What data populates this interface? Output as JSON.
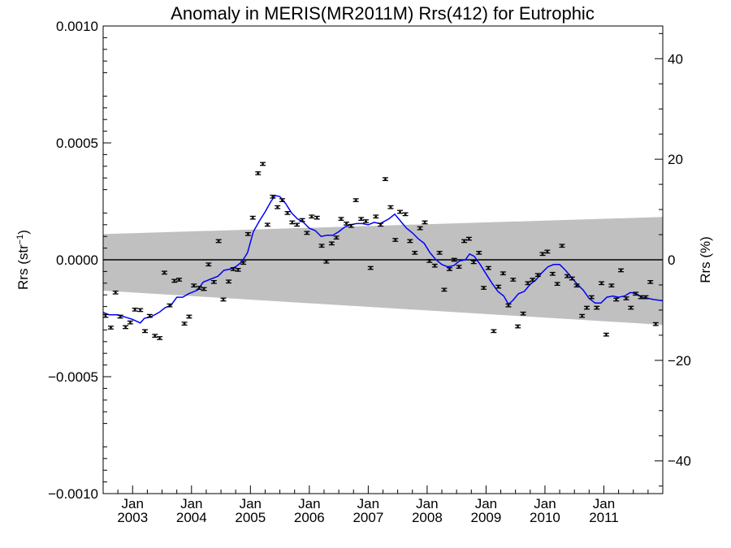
{
  "chart_data": {
    "type": "scatter",
    "title": "Anomaly in MERIS(MR2011M) Rrs(412) for Eutrophic",
    "ylabel_left_main": "Rrs (str",
    "ylabel_left_sup": "−1",
    "ylabel_left_close": ")",
    "ylabel_right": "Rrs (%)",
    "xlim": [
      2002.5,
      2012.0
    ],
    "ylim": [
      -0.001,
      0.001
    ],
    "ylim_right": [
      -46.5,
      46.5
    ],
    "grid": false,
    "y_ticks_left": [
      {
        "value": 0.001,
        "label": "0.0010"
      },
      {
        "value": 0.0005,
        "label": "0.0005"
      },
      {
        "value": 0.0,
        "label": "0.0000"
      },
      {
        "value": -0.0005,
        "label": "−0.0005"
      },
      {
        "value": -0.001,
        "label": "−0.0010"
      }
    ],
    "y_ticks_right": [
      {
        "value": 40,
        "label": "40"
      },
      {
        "value": 20,
        "label": "20"
      },
      {
        "value": 0,
        "label": "0"
      },
      {
        "value": -20,
        "label": "−20"
      },
      {
        "value": -40,
        "label": "−40"
      }
    ],
    "x_ticks": [
      {
        "value": 2003.0,
        "month": "Jan",
        "year": "2003"
      },
      {
        "value": 2004.0,
        "month": "Jan",
        "year": "2004"
      },
      {
        "value": 2005.0,
        "month": "Jan",
        "year": "2005"
      },
      {
        "value": 2006.0,
        "month": "Jan",
        "year": "2006"
      },
      {
        "value": 2007.0,
        "month": "Jan",
        "year": "2007"
      },
      {
        "value": 2008.0,
        "month": "Jan",
        "year": "2008"
      },
      {
        "value": 2009.0,
        "month": "Jan",
        "year": "2009"
      },
      {
        "value": 2010.0,
        "month": "Jan",
        "year": "2010"
      },
      {
        "value": 2011.0,
        "month": "Jan",
        "year": "2011"
      }
    ],
    "band": {
      "color": "#c0c0c0",
      "x": [
        2002.5,
        2012.0
      ],
      "upper": [
        0.00011,
        0.000183
      ],
      "lower": [
        -0.000132,
        -0.000278
      ]
    },
    "zero_line": 0.0,
    "series": [
      {
        "kind": "points_with_errorbars",
        "color": "#000000",
        "error": 6e-06,
        "points": [
          [
            2002.54,
            -0.00024
          ],
          [
            2002.63,
            -0.00029
          ],
          [
            2002.71,
            -0.00014
          ],
          [
            2002.79,
            -0.000243
          ],
          [
            2002.88,
            -0.000288
          ],
          [
            2002.96,
            -0.000268
          ],
          [
            2003.04,
            -0.000213
          ],
          [
            2003.13,
            -0.000215
          ],
          [
            2003.21,
            -0.000305
          ],
          [
            2003.29,
            -0.00024
          ],
          [
            2003.38,
            -0.000325
          ],
          [
            2003.46,
            -0.000335
          ],
          [
            2003.54,
            -5.5e-05
          ],
          [
            2003.63,
            -0.000195
          ],
          [
            2003.71,
            -9e-05
          ],
          [
            2003.79,
            -8.5e-05
          ],
          [
            2003.88,
            -0.000273
          ],
          [
            2003.96,
            -0.000243
          ],
          [
            2004.04,
            -0.00011
          ],
          [
            2004.13,
            -0.00012
          ],
          [
            2004.21,
            -0.000125
          ],
          [
            2004.29,
            -2e-05
          ],
          [
            2004.38,
            -9.5e-05
          ],
          [
            2004.46,
            8e-05
          ],
          [
            2004.54,
            -0.00017
          ],
          [
            2004.63,
            -9.3e-05
          ],
          [
            2004.71,
            -4e-05
          ],
          [
            2004.79,
            -4.3e-05
          ],
          [
            2004.88,
            -1.3e-05
          ],
          [
            2004.96,
            0.00011
          ],
          [
            2005.04,
            0.00018
          ],
          [
            2005.13,
            0.00037
          ],
          [
            2005.21,
            0.00041
          ],
          [
            2005.29,
            0.00015
          ],
          [
            2005.38,
            0.00027
          ],
          [
            2005.46,
            0.000225
          ],
          [
            2005.54,
            0.000255
          ],
          [
            2005.63,
            0.0002
          ],
          [
            2005.71,
            0.00016
          ],
          [
            2005.79,
            0.00015
          ],
          [
            2005.88,
            0.00017
          ],
          [
            2005.96,
            0.000115
          ],
          [
            2006.04,
            0.000185
          ],
          [
            2006.13,
            0.00018
          ],
          [
            2006.21,
            6e-05
          ],
          [
            2006.29,
            -8e-06
          ],
          [
            2006.38,
            7e-05
          ],
          [
            2006.46,
            9.5e-05
          ],
          [
            2006.54,
            0.000175
          ],
          [
            2006.63,
            0.000155
          ],
          [
            2006.71,
            0.000145
          ],
          [
            2006.79,
            0.000255
          ],
          [
            2006.88,
            0.000175
          ],
          [
            2006.96,
            0.000165
          ],
          [
            2007.04,
            -3.5e-05
          ],
          [
            2007.13,
            0.000185
          ],
          [
            2007.21,
            0.00015
          ],
          [
            2007.29,
            0.000345
          ],
          [
            2007.38,
            0.000225
          ],
          [
            2007.46,
            8.5e-05
          ],
          [
            2007.54,
            0.000205
          ],
          [
            2007.63,
            0.000195
          ],
          [
            2007.71,
            8e-05
          ],
          [
            2007.79,
            3e-05
          ],
          [
            2007.88,
            0.000135
          ],
          [
            2007.96,
            0.00016
          ],
          [
            2008.04,
            -5e-06
          ],
          [
            2008.13,
            -2.5e-05
          ],
          [
            2008.21,
            3e-05
          ],
          [
            2008.29,
            -0.000128
          ],
          [
            2008.38,
            -4e-05
          ],
          [
            2008.46,
            0.0
          ],
          [
            2008.54,
            -3e-05
          ],
          [
            2008.63,
            8e-05
          ],
          [
            2008.71,
            9e-05
          ],
          [
            2008.79,
            -1e-05
          ],
          [
            2008.88,
            3e-05
          ],
          [
            2008.96,
            -0.00012
          ],
          [
            2009.04,
            -3.5e-05
          ],
          [
            2009.13,
            -0.000305
          ],
          [
            2009.21,
            -0.000115
          ],
          [
            2009.29,
            -5.8e-05
          ],
          [
            2009.38,
            -0.000195
          ],
          [
            2009.46,
            -8.5e-05
          ],
          [
            2009.54,
            -0.000285
          ],
          [
            2009.63,
            -0.00023
          ],
          [
            2009.71,
            -0.0001
          ],
          [
            2009.79,
            -8.5e-05
          ],
          [
            2009.88,
            -6.5e-05
          ],
          [
            2009.96,
            2.5e-05
          ],
          [
            2010.04,
            3.5e-05
          ],
          [
            2010.13,
            -6e-05
          ],
          [
            2010.21,
            -0.000103
          ],
          [
            2010.29,
            6e-05
          ],
          [
            2010.38,
            -7e-05
          ],
          [
            2010.46,
            -8e-05
          ],
          [
            2010.54,
            -0.00011
          ],
          [
            2010.63,
            -0.00024
          ],
          [
            2010.71,
            -0.000205
          ],
          [
            2010.79,
            -0.00016
          ],
          [
            2010.88,
            -0.000205
          ],
          [
            2010.96,
            -0.0001
          ],
          [
            2011.04,
            -0.00032
          ],
          [
            2011.13,
            -0.00011
          ],
          [
            2011.21,
            -0.00017
          ],
          [
            2011.29,
            -4.5e-05
          ],
          [
            2011.38,
            -0.000165
          ],
          [
            2011.46,
            -0.000205
          ],
          [
            2011.54,
            -0.000145
          ],
          [
            2011.63,
            -0.00016
          ],
          [
            2011.71,
            -0.00016
          ],
          [
            2011.79,
            -9.5e-05
          ],
          [
            2011.88,
            -0.000275
          ]
        ]
      },
      {
        "kind": "line",
        "color": "#0000ff",
        "x": [
          2002.5,
          2002.6,
          2002.75,
          2003.0,
          2003.13,
          2003.2,
          2003.3,
          2003.45,
          2003.55,
          2003.65,
          2003.75,
          2003.85,
          2003.95,
          2004.1,
          2004.2,
          2004.3,
          2004.45,
          2004.55,
          2004.65,
          2004.75,
          2004.85,
          2004.95,
          2005.05,
          2005.15,
          2005.25,
          2005.35,
          2005.42,
          2005.5,
          2005.6,
          2005.7,
          2005.8,
          2005.9,
          2006.0,
          2006.1,
          2006.2,
          2006.3,
          2006.4,
          2006.5,
          2006.6,
          2006.7,
          2006.8,
          2006.9,
          2007.0,
          2007.1,
          2007.2,
          2007.35,
          2007.45,
          2007.55,
          2007.65,
          2007.75,
          2007.85,
          2007.95,
          2008.05,
          2008.15,
          2008.25,
          2008.35,
          2008.45,
          2008.55,
          2008.65,
          2008.72,
          2008.8,
          2008.9,
          2009.0,
          2009.1,
          2009.2,
          2009.3,
          2009.38,
          2009.45,
          2009.55,
          2009.65,
          2009.75,
          2009.85,
          2009.95,
          2010.05,
          2010.15,
          2010.25,
          2010.35,
          2010.45,
          2010.55,
          2010.65,
          2010.75,
          2010.85,
          2010.95,
          2011.05,
          2011.15,
          2011.25,
          2011.35,
          2011.45,
          2011.55,
          2011.65,
          2011.75,
          2011.85,
          2012.0
        ],
        "y": [
          -0.000225,
          -0.000235,
          -0.000235,
          -0.000255,
          -0.00027,
          -0.00025,
          -0.000245,
          -0.000225,
          -0.000205,
          -0.000195,
          -0.00016,
          -0.00016,
          -0.000145,
          -0.00013,
          -9.5e-05,
          -8.5e-05,
          -7e-05,
          -4.5e-05,
          -4e-05,
          -3e-05,
          -1e-05,
          3e-05,
          0.00012,
          0.000165,
          0.000205,
          0.00025,
          0.000275,
          0.00027,
          0.00024,
          0.0002,
          0.000175,
          0.00016,
          0.000135,
          0.000125,
          0.0001,
          0.000105,
          0.000105,
          0.00012,
          0.00014,
          0.00015,
          0.000155,
          0.000155,
          0.00015,
          0.00016,
          0.000155,
          0.000175,
          0.000195,
          0.000165,
          0.000135,
          0.000115,
          9e-05,
          7e-05,
          3e-05,
          0.0,
          -2e-05,
          -3e-05,
          -2.5e-05,
          -5e-06,
          0.0,
          2.5e-05,
          1.5e-05,
          -2e-05,
          -6e-05,
          -0.0001,
          -0.000135,
          -0.000155,
          -0.00019,
          -0.000175,
          -0.000145,
          -0.000135,
          -0.000105,
          -8.5e-05,
          -5.5e-05,
          -3e-05,
          -2e-05,
          -2e-05,
          -4.5e-05,
          -7.5e-05,
          -0.000105,
          -0.00013,
          -0.000165,
          -0.000185,
          -0.000185,
          -0.00016,
          -0.000155,
          -0.00016,
          -0.000155,
          -0.00014,
          -0.000145,
          -0.00016,
          -0.000165,
          -0.00017,
          -0.000175
        ]
      }
    ]
  }
}
